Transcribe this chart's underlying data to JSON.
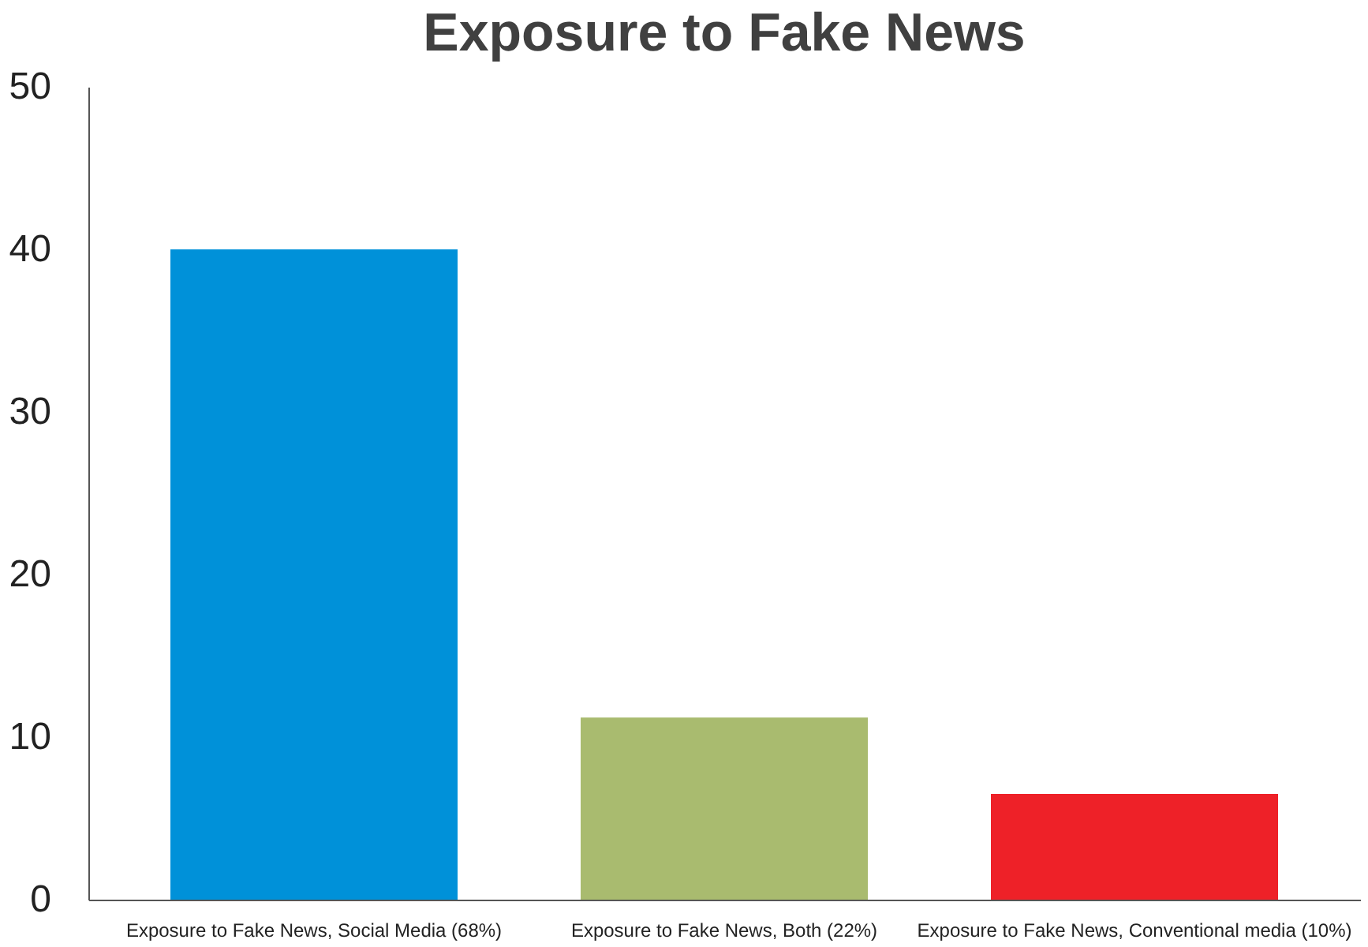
{
  "chart_data": {
    "type": "bar",
    "title": "Exposure to Fake News",
    "categories": [
      "Exposure to Fake News, Social Media (68%)",
      "Exposure to Fake News, Both (22%)",
      "Exposure to Fake News, Conventional media (10%)"
    ],
    "values": [
      40,
      11.2,
      6.5
    ],
    "colors": [
      "#0091d9",
      "#a9bb6f",
      "#ee2128"
    ],
    "ylim": [
      0,
      50
    ],
    "yticks": [
      0,
      10,
      20,
      30,
      40,
      50
    ],
    "grid": false
  }
}
